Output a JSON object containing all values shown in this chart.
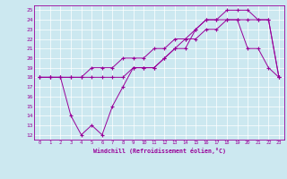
{
  "xlabel": "Windchill (Refroidissement éolien,°C)",
  "bg_color": "#cce8f0",
  "line_color": "#990099",
  "grid_color": "#ffffff",
  "xlim": [
    -0.5,
    23.5
  ],
  "ylim": [
    11.5,
    25.5
  ],
  "xticks": [
    0,
    1,
    2,
    3,
    4,
    5,
    6,
    7,
    8,
    9,
    10,
    11,
    12,
    13,
    14,
    15,
    16,
    17,
    18,
    19,
    20,
    21,
    22,
    23
  ],
  "yticks": [
    12,
    13,
    14,
    15,
    16,
    17,
    18,
    19,
    20,
    21,
    22,
    23,
    24,
    25
  ],
  "line1_x": [
    0,
    1,
    2,
    3,
    4,
    5,
    6,
    7,
    8,
    9,
    10,
    11,
    12,
    13,
    14,
    15,
    16,
    17,
    18,
    19,
    20,
    21,
    22,
    23
  ],
  "line1_y": [
    18,
    18,
    18,
    14,
    12,
    13,
    12,
    15,
    17,
    19,
    19,
    19,
    20,
    21,
    21,
    23,
    24,
    24,
    24,
    24,
    21,
    21,
    19,
    18
  ],
  "line2_x": [
    0,
    1,
    2,
    3,
    4,
    5,
    6,
    7,
    8,
    9,
    10,
    11,
    12,
    13,
    14,
    15,
    16,
    17,
    18,
    19,
    20,
    21,
    22,
    23
  ],
  "line2_y": [
    18,
    18,
    18,
    18,
    18,
    18,
    18,
    18,
    18,
    19,
    19,
    19,
    20,
    21,
    22,
    22,
    23,
    23,
    24,
    24,
    24,
    24,
    24,
    18
  ],
  "line3_x": [
    0,
    1,
    2,
    3,
    4,
    5,
    6,
    7,
    8,
    9,
    10,
    11,
    12,
    13,
    14,
    15,
    16,
    17,
    18,
    19,
    20,
    21,
    22,
    23
  ],
  "line3_y": [
    18,
    18,
    18,
    18,
    18,
    19,
    19,
    19,
    20,
    20,
    20,
    21,
    21,
    22,
    22,
    23,
    24,
    24,
    25,
    25,
    25,
    24,
    24,
    18
  ]
}
